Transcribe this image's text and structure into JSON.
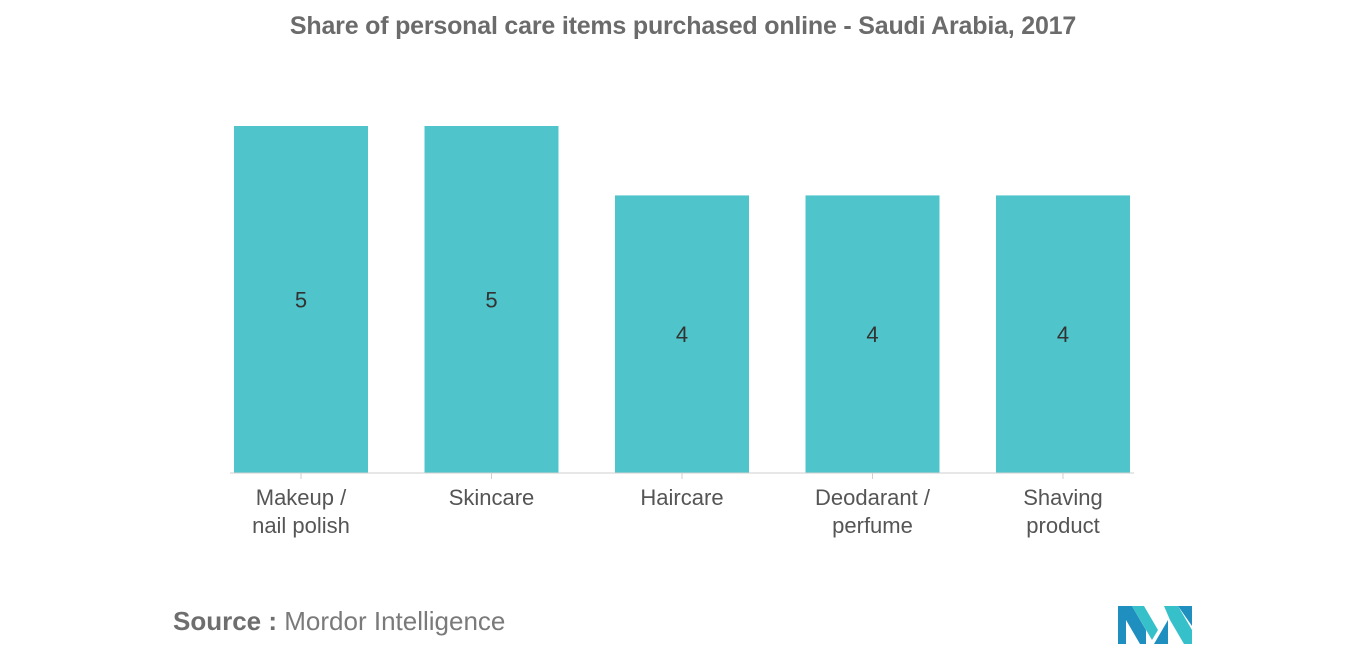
{
  "chart_data": {
    "type": "bar",
    "title": "Share of personal care items purchased online - Saudi Arabia, 2017",
    "categories": [
      [
        "Makeup /",
        "nail polish"
      ],
      [
        "Skincare"
      ],
      [
        "Haircare"
      ],
      [
        "Deodarant /",
        "perfume"
      ],
      [
        "Shaving",
        "product"
      ]
    ],
    "values": [
      5,
      5,
      4,
      4,
      4
    ],
    "data_labels": [
      "5",
      "5",
      "4",
      "4",
      "4"
    ],
    "xlabel": "",
    "ylabel": "",
    "ylim": [
      0,
      5
    ],
    "grid": false,
    "legend": "none",
    "bar_color": "#4fc4cb",
    "label_color": "#333333",
    "axis_color": "#cfcfcf"
  },
  "source": {
    "label": "Source :",
    "name": "Mordor Intelligence"
  },
  "logo": {
    "icon": "mordor-intelligence-logo",
    "colors": [
      "#1f8fbf",
      "#36c0c9"
    ]
  }
}
